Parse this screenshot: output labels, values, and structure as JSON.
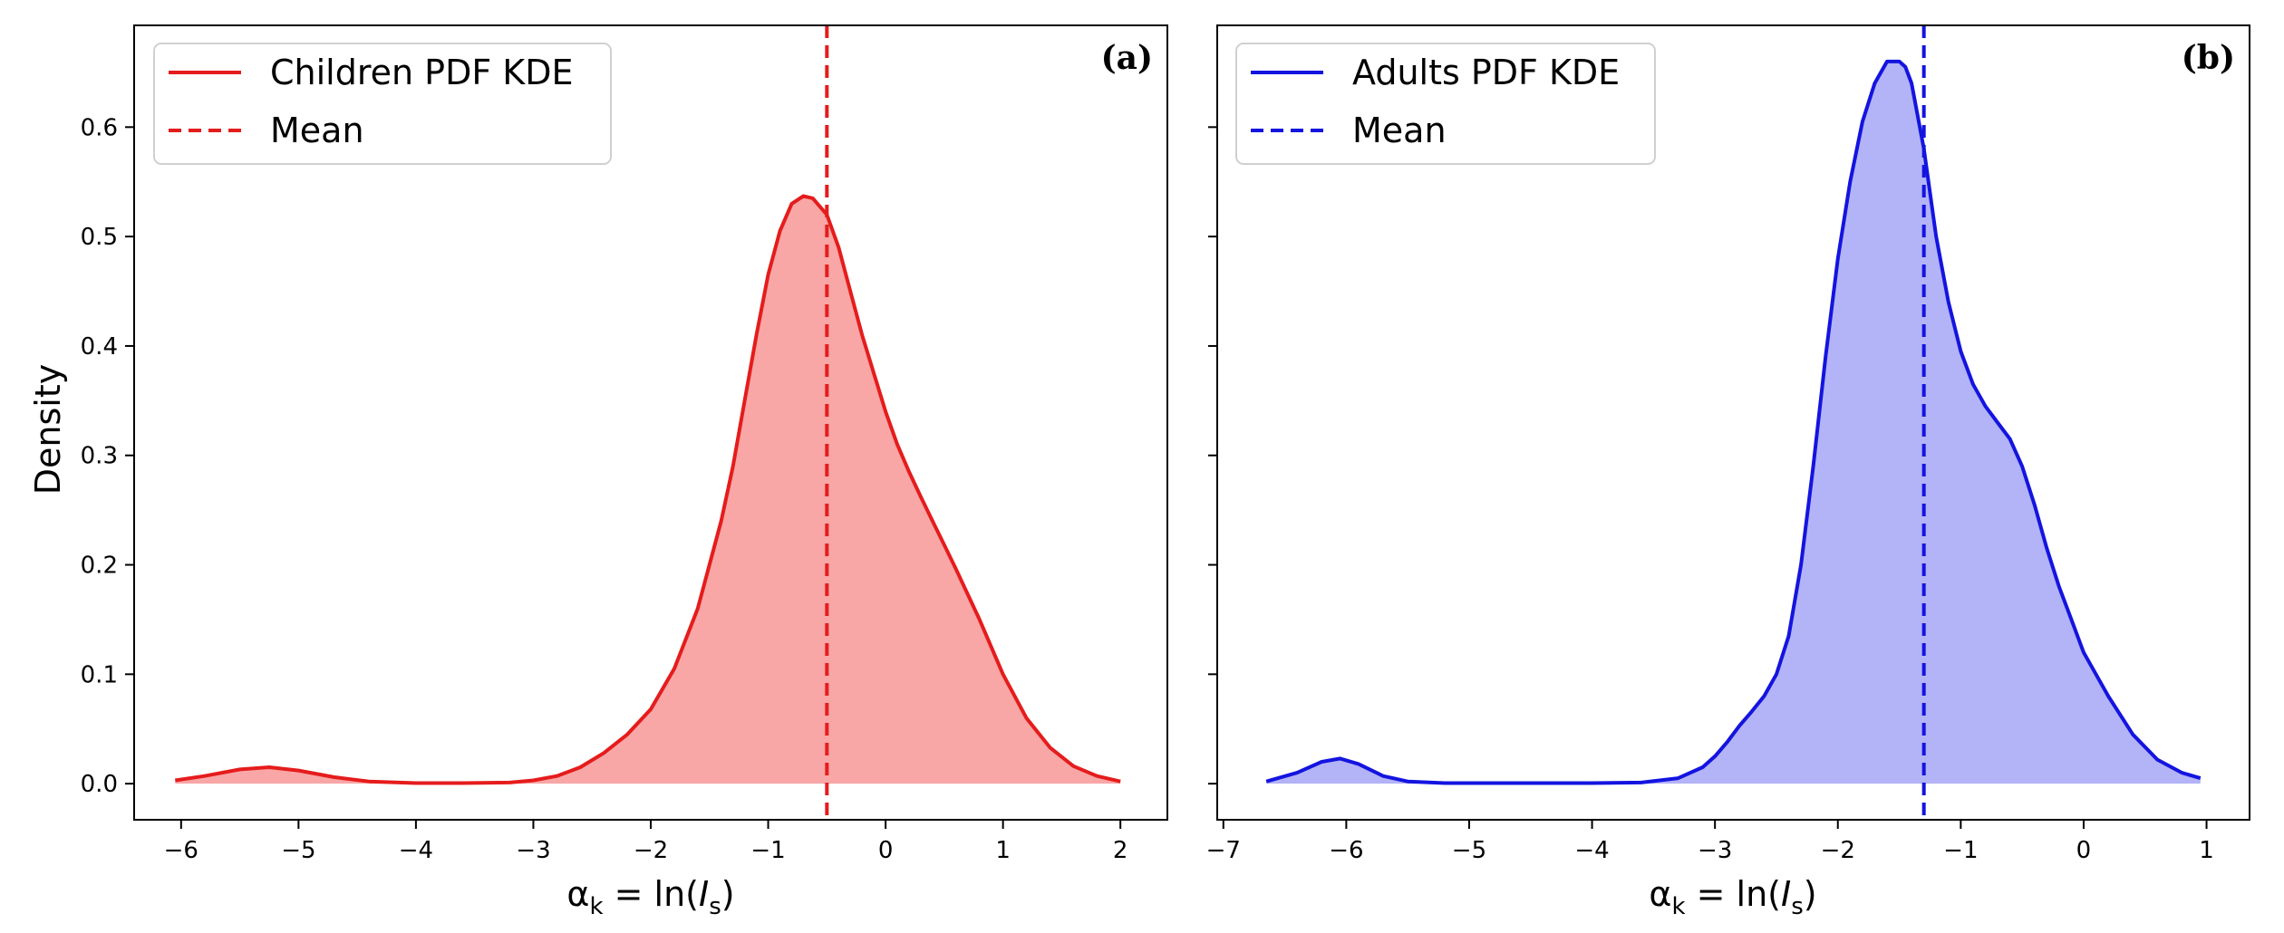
{
  "chart_data": [
    {
      "type": "area",
      "panel_label": "(a)",
      "xlabel": "α_k = ln(I_s)",
      "ylabel": "Density",
      "xlim": [
        -6.4,
        2.4
      ],
      "ylim": [
        -0.033,
        0.693
      ],
      "xticks": [
        -6,
        -5,
        -4,
        -3,
        -2,
        -1,
        0,
        1,
        2
      ],
      "yticks": [
        0.0,
        0.1,
        0.2,
        0.3,
        0.4,
        0.5,
        0.6
      ],
      "grid": false,
      "legend_position": "top-left",
      "line_color": "#e51c1c",
      "fill_color": "#f9a6a6",
      "series": [
        {
          "name": "Children PDF KDE",
          "x": [
            -6.05,
            -5.8,
            -5.5,
            -5.25,
            -5.0,
            -4.7,
            -4.4,
            -4.0,
            -3.6,
            -3.2,
            -3.0,
            -2.8,
            -2.6,
            -2.4,
            -2.2,
            -2.0,
            -1.8,
            -1.6,
            -1.4,
            -1.3,
            -1.2,
            -1.1,
            -1.0,
            -0.9,
            -0.8,
            -0.7,
            -0.62,
            -0.5,
            -0.4,
            -0.3,
            -0.2,
            -0.1,
            0.0,
            0.1,
            0.2,
            0.3,
            0.4,
            0.5,
            0.6,
            0.8,
            1.0,
            1.2,
            1.4,
            1.6,
            1.8,
            2.0
          ],
          "y": [
            0.003,
            0.007,
            0.013,
            0.015,
            0.012,
            0.006,
            0.002,
            0.0005,
            0.0005,
            0.001,
            0.003,
            0.007,
            0.015,
            0.028,
            0.045,
            0.068,
            0.105,
            0.16,
            0.24,
            0.29,
            0.35,
            0.41,
            0.465,
            0.505,
            0.53,
            0.537,
            0.535,
            0.52,
            0.49,
            0.45,
            0.41,
            0.375,
            0.34,
            0.31,
            0.285,
            0.262,
            0.24,
            0.218,
            0.196,
            0.15,
            0.1,
            0.06,
            0.033,
            0.016,
            0.007,
            0.002
          ]
        },
        {
          "name": "Mean",
          "style": "dashed-vertical",
          "x": -0.5
        }
      ]
    },
    {
      "type": "area",
      "panel_label": "(b)",
      "xlabel": "α_k = ln(I_s)",
      "ylabel": "",
      "xlim": [
        -7.05,
        1.35
      ],
      "ylim": [
        -0.033,
        0.693
      ],
      "xticks": [
        -7,
        -6,
        -5,
        -4,
        -3,
        -2,
        -1,
        0,
        1
      ],
      "yticks": [
        0.0,
        0.1,
        0.2,
        0.3,
        0.4,
        0.5,
        0.6
      ],
      "grid": false,
      "legend_position": "top-left",
      "line_color": "#1414e0",
      "fill_color": "#b3b3f7",
      "series": [
        {
          "name": "Adults PDF KDE",
          "x": [
            -6.65,
            -6.4,
            -6.2,
            -6.05,
            -5.9,
            -5.7,
            -5.5,
            -5.2,
            -4.8,
            -4.4,
            -4.0,
            -3.6,
            -3.3,
            -3.1,
            -3.0,
            -2.9,
            -2.8,
            -2.7,
            -2.6,
            -2.5,
            -2.4,
            -2.3,
            -2.2,
            -2.1,
            -2.0,
            -1.9,
            -1.8,
            -1.7,
            -1.6,
            -1.5,
            -1.45,
            -1.4,
            -1.3,
            -1.2,
            -1.1,
            -1.0,
            -0.9,
            -0.8,
            -0.7,
            -0.6,
            -0.5,
            -0.4,
            -0.3,
            -0.2,
            -0.1,
            0.0,
            0.2,
            0.4,
            0.6,
            0.8,
            0.95
          ],
          "y": [
            0.002,
            0.01,
            0.02,
            0.023,
            0.018,
            0.007,
            0.002,
            0.0005,
            0.0005,
            0.0005,
            0.0005,
            0.001,
            0.005,
            0.015,
            0.025,
            0.038,
            0.053,
            0.066,
            0.08,
            0.1,
            0.135,
            0.2,
            0.29,
            0.39,
            0.48,
            0.55,
            0.605,
            0.64,
            0.66,
            0.66,
            0.655,
            0.64,
            0.58,
            0.5,
            0.44,
            0.395,
            0.365,
            0.345,
            0.33,
            0.315,
            0.29,
            0.255,
            0.215,
            0.18,
            0.15,
            0.12,
            0.08,
            0.045,
            0.022,
            0.01,
            0.005
          ]
        },
        {
          "name": "Mean",
          "style": "dashed-vertical",
          "x": -1.3
        }
      ]
    }
  ]
}
